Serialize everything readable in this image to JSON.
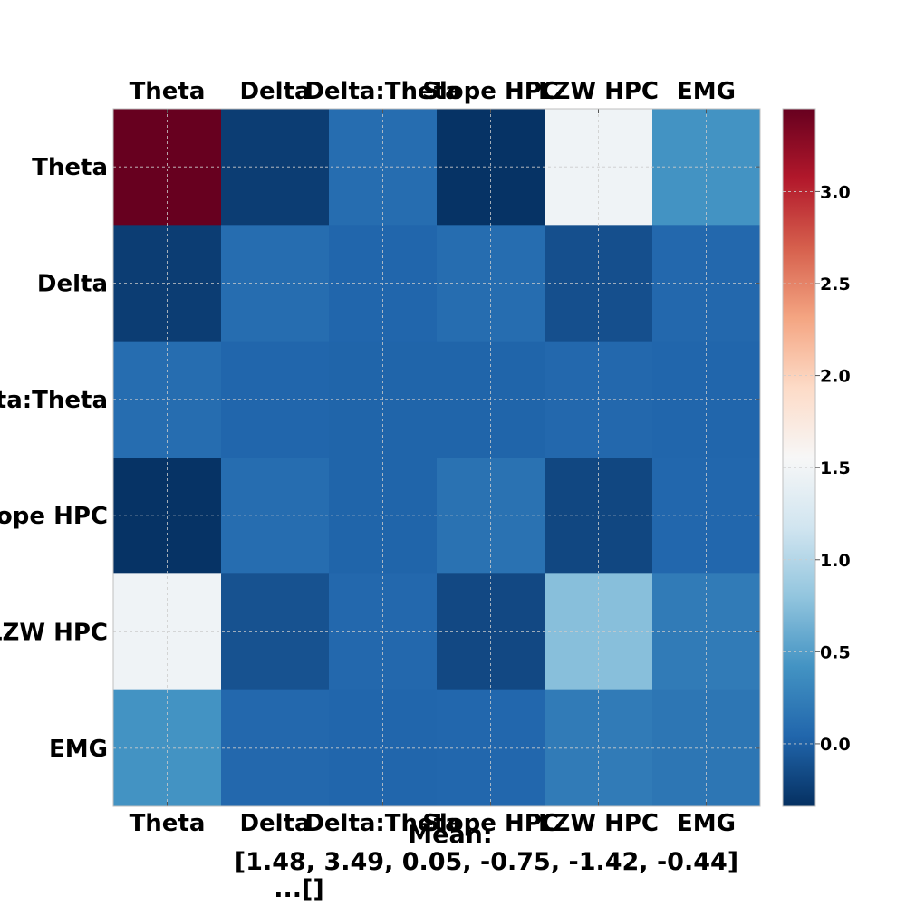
{
  "chart_data": {
    "type": "heatmap",
    "title": "",
    "xlabel": "",
    "ylabel": "",
    "x_labels": [
      "Theta",
      "Delta",
      "Delta:Theta",
      "Slope HPC",
      "LZW HPC",
      "EMG"
    ],
    "y_labels": [
      "Theta",
      "Delta",
      "Delta:Theta",
      "Slope HPC",
      "LZW HPC",
      "EMG"
    ],
    "values": [
      [
        3.45,
        -0.25,
        0.1,
        -0.32,
        1.48,
        0.42
      ],
      [
        -0.25,
        0.1,
        0.04,
        0.1,
        -0.12,
        0.06
      ],
      [
        0.1,
        0.04,
        0.03,
        0.03,
        0.06,
        0.04
      ],
      [
        -0.32,
        0.1,
        0.03,
        0.14,
        -0.18,
        0.05
      ],
      [
        1.48,
        -0.1,
        0.06,
        -0.17,
        0.75,
        0.22
      ],
      [
        0.42,
        0.06,
        0.04,
        0.05,
        0.22,
        0.17
      ]
    ],
    "colormap": "RdBu_r",
    "vmin": -0.34,
    "vmax": 3.45,
    "colorbar_ticks": [
      "0.0",
      "0.5",
      "1.0",
      "1.5",
      "2.0",
      "2.5",
      "3.0"
    ],
    "grid": true,
    "caption_lines": [
      "Mean:",
      "[1.48, 3.49, 0.05, -0.75, -1.42, -0.44]",
      "...[]"
    ]
  }
}
